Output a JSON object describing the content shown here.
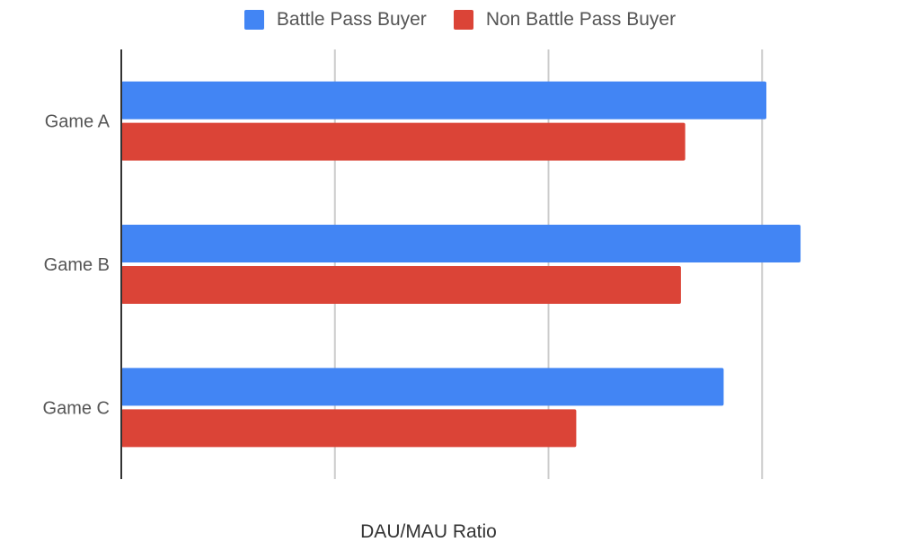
{
  "chart_data": {
    "type": "bar",
    "orientation": "horizontal",
    "title": "",
    "xlabel": "DAU/MAU Ratio",
    "ylabel": "",
    "categories": [
      "Game A",
      "Game B",
      "Game C"
    ],
    "series": [
      {
        "name": "Battle Pass Buyer",
        "color": "#4285F4",
        "values": [
          0.302,
          0.318,
          0.282
        ]
      },
      {
        "name": "Non Battle Pass Buyer",
        "color": "#DB4437",
        "values": [
          0.264,
          0.262,
          0.213
        ]
      }
    ],
    "xlim": [
      0,
      0.4
    ],
    "xticks": [
      0,
      0.1,
      0.2,
      0.3,
      0.4
    ],
    "x_tick_labels_shown": false,
    "grid": true,
    "legend_position": "top-center"
  }
}
